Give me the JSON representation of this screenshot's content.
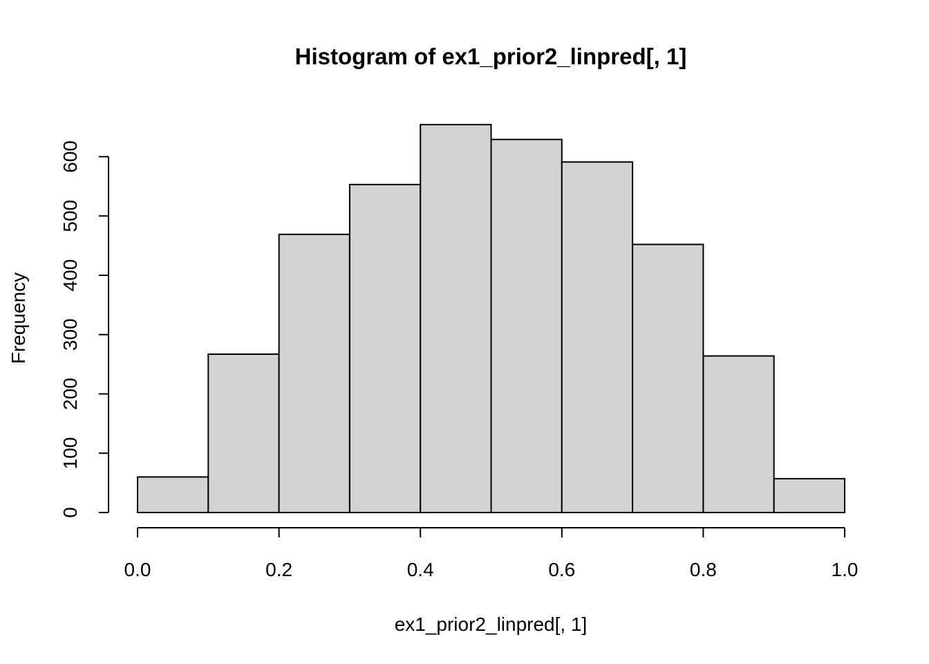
{
  "chart_data": {
    "type": "bar",
    "title": "Histogram of ex1_prior2_linpred[, 1]",
    "xlabel": "ex1_prior2_linpred[, 1]",
    "ylabel": "Frequency",
    "bin_edges": [
      0.0,
      0.1,
      0.2,
      0.3,
      0.4,
      0.5,
      0.6,
      0.7,
      0.8,
      0.9,
      1.0
    ],
    "values": [
      60,
      267,
      469,
      553,
      654,
      629,
      591,
      452,
      264,
      57
    ],
    "xlim": [
      0.0,
      1.0
    ],
    "ylim": [
      0,
      654
    ],
    "x_ticks": [
      "0.0",
      "0.2",
      "0.4",
      "0.6",
      "0.8",
      "1.0"
    ],
    "y_ticks": [
      "0",
      "100",
      "200",
      "300",
      "400",
      "500",
      "600"
    ],
    "bar_color": "#d3d3d3",
    "grid": false
  }
}
